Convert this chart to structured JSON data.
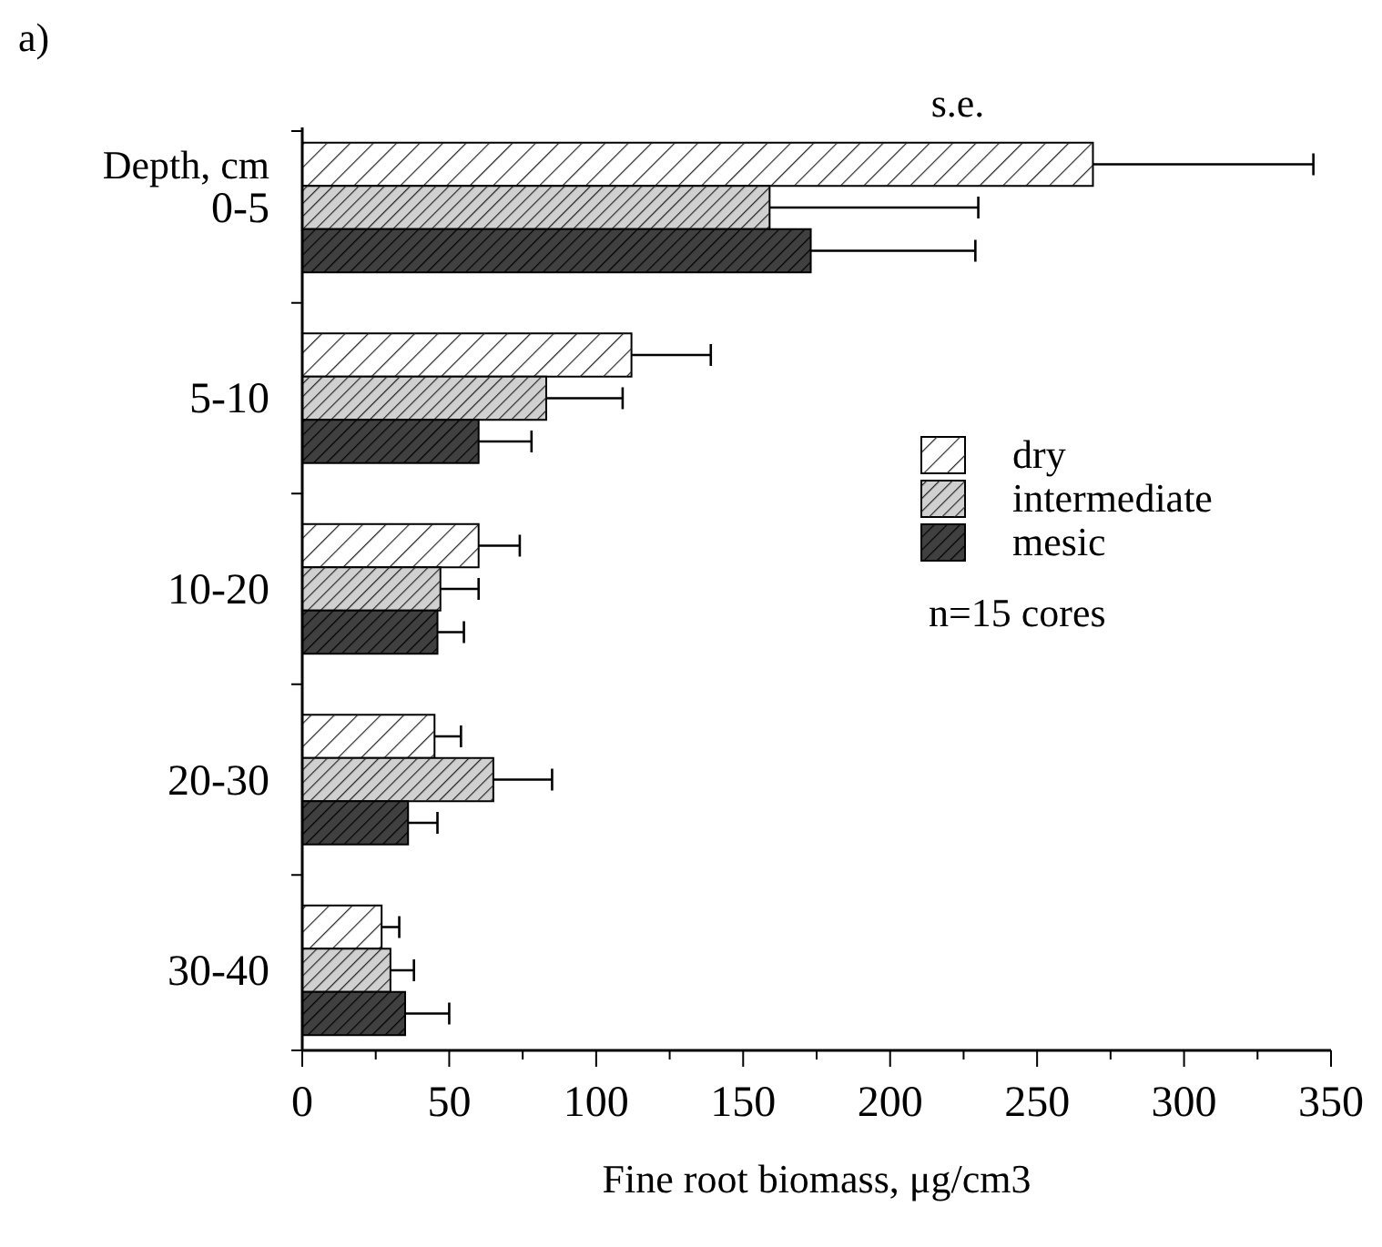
{
  "chart_data": {
    "type": "bar",
    "orientation": "horizontal",
    "ylabel": "Depth, cm",
    "xlabel": "Fine root biomass, μg/cm3",
    "categories": [
      "0-5",
      "5-10",
      "10-20",
      "20-30",
      "30-40"
    ],
    "series": [
      {
        "name": "dry",
        "color": "#ffffff",
        "values": [
          269,
          112,
          60,
          45,
          27
        ],
        "errors": [
          [
            269,
            344
          ],
          [
            112,
            139
          ],
          [
            60,
            74
          ],
          [
            45,
            54
          ],
          [
            27,
            33
          ]
        ]
      },
      {
        "name": "intermediate",
        "color": "#d0d0d0",
        "values": [
          159,
          83,
          47,
          65,
          30
        ],
        "errors": [
          [
            159,
            230
          ],
          [
            83,
            109
          ],
          [
            47,
            60
          ],
          [
            65,
            85
          ],
          [
            30,
            38
          ]
        ]
      },
      {
        "name": "mesic",
        "color": "#404040",
        "values": [
          173,
          60,
          46,
          36,
          35
        ],
        "errors": [
          [
            173,
            229
          ],
          [
            60,
            78
          ],
          [
            46,
            55
          ],
          [
            36,
            46
          ],
          [
            35,
            50
          ]
        ]
      }
    ],
    "xlim": [
      0,
      350
    ],
    "xticks": [
      0,
      {
        "value": 25,
        "label": null
      },
      50,
      {
        "value": 75,
        "label": null
      },
      100,
      {
        "value": 125,
        "label": null
      },
      150,
      {
        "value": 175,
        "label": null
      },
      200,
      {
        "value": 225,
        "label": null
      },
      250,
      {
        "value": 275,
        "label": null
      },
      300,
      {
        "value": 325,
        "label": null
      },
      350
    ],
    "legend": "right",
    "grid": false,
    "annotations": [
      "a)",
      "s.e.",
      "n=15 cores"
    ]
  }
}
